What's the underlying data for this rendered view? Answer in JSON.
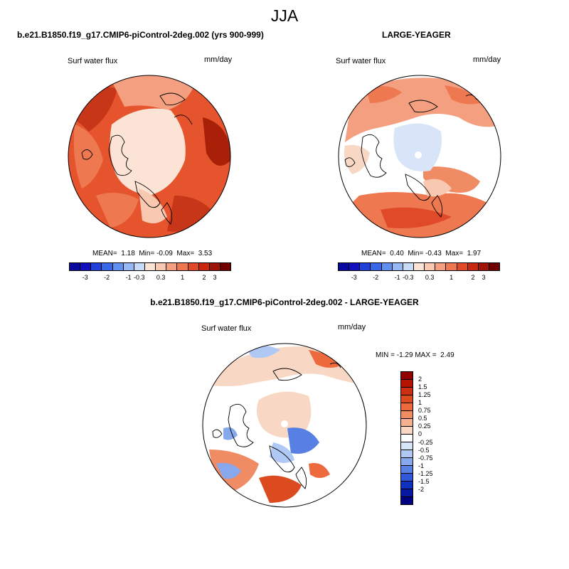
{
  "figure": {
    "season": "JJA",
    "panels": [
      {
        "title": "b.e21.B1850.f19_g17.CMIP6-piControl-2deg.002 (yrs 900-999)",
        "variable": "Surf water flux",
        "units": "mm/day",
        "stats": {
          "mean_label": "MEAN=",
          "mean": "1.18",
          "min_label": "Min=",
          "min": "-0.09",
          "max_label": "Max=",
          "max": "3.53"
        }
      },
      {
        "title": "LARGE-YEAGER",
        "variable": "Surf water flux",
        "units": "mm/day",
        "stats": {
          "mean_label": "MEAN=",
          "mean": "0.40",
          "min_label": "Min=",
          "min": "-0.43",
          "max_label": "Max=",
          "max": "1.97"
        }
      },
      {
        "title": "b.e21.B1850.f19_g17.CMIP6-piControl-2deg.002 - LARGE-YEAGER",
        "variable": "Surf water flux",
        "units": "mm/day",
        "stats": {
          "min_label": "MIN =",
          "min": "-1.29",
          "max_label": "MAX =",
          "max": "2.49"
        }
      }
    ],
    "colorbar_top": {
      "ticks": [
        "-3",
        "-2",
        "-1",
        "-0.3",
        "0.3",
        "1",
        "2",
        "3"
      ],
      "colors": [
        "#08089c",
        "#1010c0",
        "#2040d8",
        "#3868e8",
        "#6090f0",
        "#98b8f4",
        "#c8dcf8",
        "#fbe4d6",
        "#f8c8b0",
        "#f4a080",
        "#ee7850",
        "#e04a28",
        "#c82810",
        "#a01408",
        "#700000"
      ]
    },
    "colorbar_diff": {
      "ticks": [
        "2",
        "1.5",
        "1.25",
        "1",
        "0.75",
        "0.5",
        "0.25",
        "0",
        "-0.25",
        "-0.5",
        "-0.75",
        "-1",
        "-1.25",
        "-1.5",
        "-2"
      ],
      "colors": [
        "#900000",
        "#b41400",
        "#cc3010",
        "#dc4a20",
        "#ec6a3c",
        "#f08c64",
        "#f4b090",
        "#f8d8c4",
        "#ffffff",
        "#d8e4f8",
        "#b0c8f4",
        "#88a8ee",
        "#5880e4",
        "#3058d8",
        "#1030c0",
        "#0818a4",
        "#000080"
      ]
    }
  }
}
